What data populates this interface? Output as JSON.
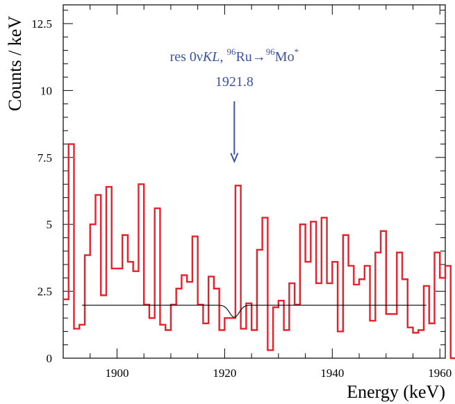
{
  "chart_data": {
    "type": "histogram",
    "xlabel": "Energy (keV)",
    "ylabel": "Counts / keV",
    "xlim": [
      1890,
      1961
    ],
    "ylim": [
      0,
      13.2
    ],
    "x_ticks": [
      1900,
      1920,
      1940,
      1960
    ],
    "x_tick_labels": [
      "1900",
      "1920",
      "1940",
      "1960"
    ],
    "y_ticks": [
      0,
      2.5,
      5,
      7.5,
      10,
      12.5
    ],
    "y_tick_labels": [
      "0",
      "2.5",
      "5",
      "7.5",
      "10",
      "12.5"
    ],
    "bin_width": 1,
    "x_start": 1890,
    "series": [
      {
        "color": "#e8202a",
        "values": [
          2.2,
          8.0,
          1.1,
          1.25,
          3.85,
          5.0,
          6.1,
          2.35,
          6.4,
          3.35,
          3.35,
          4.6,
          3.6,
          3.25,
          6.5,
          2.0,
          1.5,
          5.6,
          1.25,
          1.05,
          2.0,
          2.6,
          3.1,
          2.85,
          4.55,
          2.0,
          1.3,
          3.05,
          2.6,
          1.05,
          1.5,
          1.5,
          6.45,
          1.1,
          2.05,
          1.05,
          4.05,
          5.25,
          0.3,
          1.9,
          2.15,
          1.05,
          2.8,
          2.0,
          5.0,
          3.6,
          5.1,
          2.8,
          5.25,
          2.8,
          3.6,
          1.0,
          4.6,
          3.45,
          2.75,
          2.95,
          3.45,
          1.4,
          3.95,
          4.75,
          1.65,
          1.65,
          3.95,
          2.95,
          1.15,
          0.95,
          1.05,
          2.7,
          1.3,
          3.95,
          3.0,
          3.45,
          0
        ]
      }
    ],
    "fit": {
      "color": "#000000",
      "baseline": 1.98,
      "x_range": [
        1893.5,
        1957.5
      ],
      "dip_center": 1921.8,
      "dip_depth": 0.45,
      "dip_sigma": 0.9
    },
    "annotation": {
      "line1_prefix": "res 0ν",
      "line1_italic": "KL",
      "line1_comma": ", ",
      "sup1": "96",
      "ru": "Ru→",
      "sup2": "96",
      "mo": "Mo",
      "star": "*",
      "line2": "1921.8",
      "arrow_x": 1921.8,
      "arrow_y_top": 9.6,
      "arrow_y_bottom": 7.35,
      "color": "#3b52a4"
    }
  }
}
